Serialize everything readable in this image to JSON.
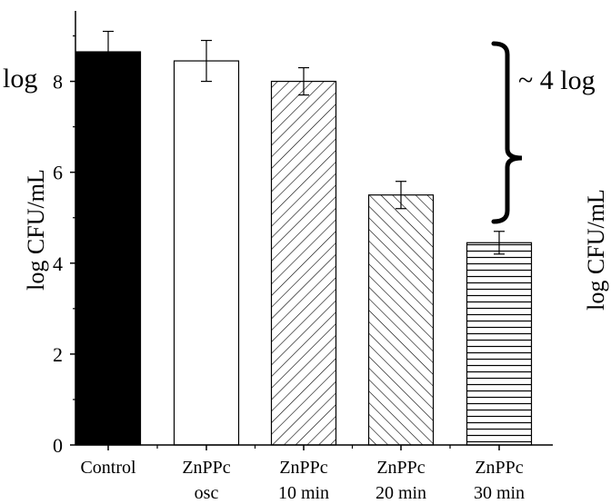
{
  "chart_data": {
    "type": "bar",
    "categories": [
      [
        "Control"
      ],
      [
        "ZnPPc",
        "osc"
      ],
      [
        "ZnPPc",
        "10 min"
      ],
      [
        "ZnPPc",
        "20 min"
      ],
      [
        "ZnPPc",
        "30 min"
      ]
    ],
    "values": [
      8.65,
      8.45,
      8.0,
      5.5,
      4.45
    ],
    "errors": [
      0.45,
      0.45,
      0.3,
      0.3,
      0.25
    ],
    "fills": [
      "solid-black",
      "white",
      "diag-up",
      "diag-down",
      "horizontal"
    ],
    "ylabel": "log CFU/mL",
    "ylim": [
      0,
      9.55
    ],
    "yticks": [
      0,
      2,
      4,
      6,
      8
    ],
    "grid": false,
    "annotations": {
      "reduction": "~ 4 log",
      "clipped_left": "log",
      "clipped_right_ylabel": "log CFU/mL"
    }
  }
}
